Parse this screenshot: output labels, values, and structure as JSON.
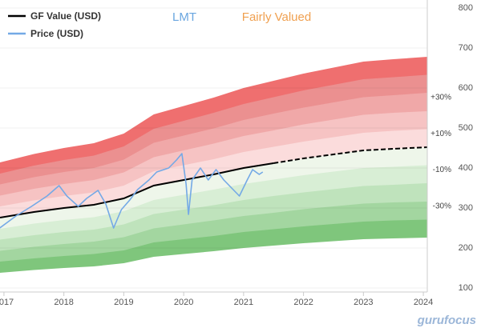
{
  "chart_data": {
    "type": "gf_value",
    "ticker": "LMT",
    "valuation": "Fairly Valued",
    "watermark": "gurufocus",
    "xlim": [
      2016.934,
      2024.066
    ],
    "xticks": [
      {
        "value": 2017,
        "label": "2017"
      },
      2018,
      2019,
      2020,
      2021,
      2022,
      2023,
      2024
    ],
    "ylim": [
      100,
      800
    ],
    "yticks": [
      100,
      200,
      300,
      400,
      500,
      600,
      700,
      800
    ],
    "grid": true,
    "x": [
      2016.934,
      2017.5,
      2018,
      2018.5,
      2019,
      2019.5,
      2020,
      2020.5,
      2021,
      2021.5,
      2022,
      2022.5,
      2023,
      2023.5,
      2024.066
    ],
    "projection_start": 2021.5,
    "fair_color": "#eef6ea",
    "series": [
      {
        "name": "GF Value (USD)",
        "color": "#000000",
        "values": [
          276,
          290,
          300,
          308,
          324,
          356,
          370,
          384,
          400,
          412,
          424,
          434,
          444,
          448,
          452
        ]
      },
      {
        "name": "Price (USD)",
        "color": "#74a9e6",
        "x": [
          2016.93,
          2017.2,
          2017.46,
          2017.72,
          2017.92,
          2018.05,
          2018.24,
          2018.38,
          2018.57,
          2018.7,
          2018.83,
          2018.96,
          2019.1,
          2019.23,
          2019.42,
          2019.55,
          2019.75,
          2019.88,
          2019.97,
          2020.04,
          2020.08,
          2020.14,
          2020.28,
          2020.41,
          2020.54,
          2020.67,
          2020.8,
          2020.93,
          2021.06,
          2021.15,
          2021.26,
          2021.32
        ],
        "values": [
          250,
          280,
          304,
          330,
          356,
          330,
          304,
          324,
          344,
          310,
          250,
          296,
          320,
          346,
          370,
          390,
          400,
          420,
          436,
          360,
          284,
          370,
          400,
          370,
          396,
          370,
          350,
          330,
          370,
          396,
          384,
          390
        ]
      }
    ],
    "bands": [
      {
        "color": "#ef6f6f",
        "values": [
          414,
          435,
          450,
          462,
          486,
          534,
          555,
          576,
          600,
          618,
          636,
          651,
          666,
          672,
          678
        ]
      },
      {
        "color": "#eb9090",
        "values": [
          386,
          406,
          420,
          431,
          454,
          498,
          518,
          538,
          560,
          577,
          594,
          608,
          622,
          627,
          633
        ]
      },
      {
        "color": "#f0a8a8",
        "values": [
          359,
          377,
          390,
          400,
          421,
          463,
          481,
          499,
          520,
          536,
          551,
          564,
          577,
          582,
          588
        ]
      },
      {
        "color": "#f6c3c3",
        "values": [
          331,
          348,
          360,
          370,
          389,
          427,
          444,
          461,
          480,
          494,
          509,
          521,
          533,
          538,
          542
        ]
      },
      {
        "color": "#fbdcdc",
        "values": [
          304,
          319,
          330,
          339,
          356,
          392,
          407,
          422,
          440,
          453,
          466,
          477,
          488,
          493,
          497
        ]
      },
      {
        "color": "#d8eed5",
        "values": [
          248,
          261,
          270,
          277,
          292,
          320,
          333,
          346,
          360,
          371,
          382,
          391,
          400,
          403,
          407
        ]
      },
      {
        "color": "#bfe3bc",
        "values": [
          221,
          232,
          240,
          246,
          259,
          285,
          296,
          307,
          320,
          330,
          339,
          347,
          355,
          358,
          362
        ]
      },
      {
        "color": "#a3d6a0",
        "values": [
          193,
          203,
          210,
          216,
          227,
          249,
          259,
          269,
          280,
          288,
          297,
          304,
          311,
          314,
          316
        ]
      },
      {
        "color": "#7fc67c",
        "values": [
          166,
          174,
          180,
          185,
          194,
          214,
          222,
          230,
          240,
          247,
          254,
          260,
          266,
          269,
          271
        ]
      },
      {
        "color": "#ffffff",
        "values": [
          138,
          145,
          150,
          154,
          162,
          178,
          185,
          192,
          200,
          206,
          212,
          217,
          222,
          224,
          226
        ]
      }
    ],
    "annotations": [
      "+30%",
      "+10%",
      "-10%",
      "-30%"
    ]
  }
}
